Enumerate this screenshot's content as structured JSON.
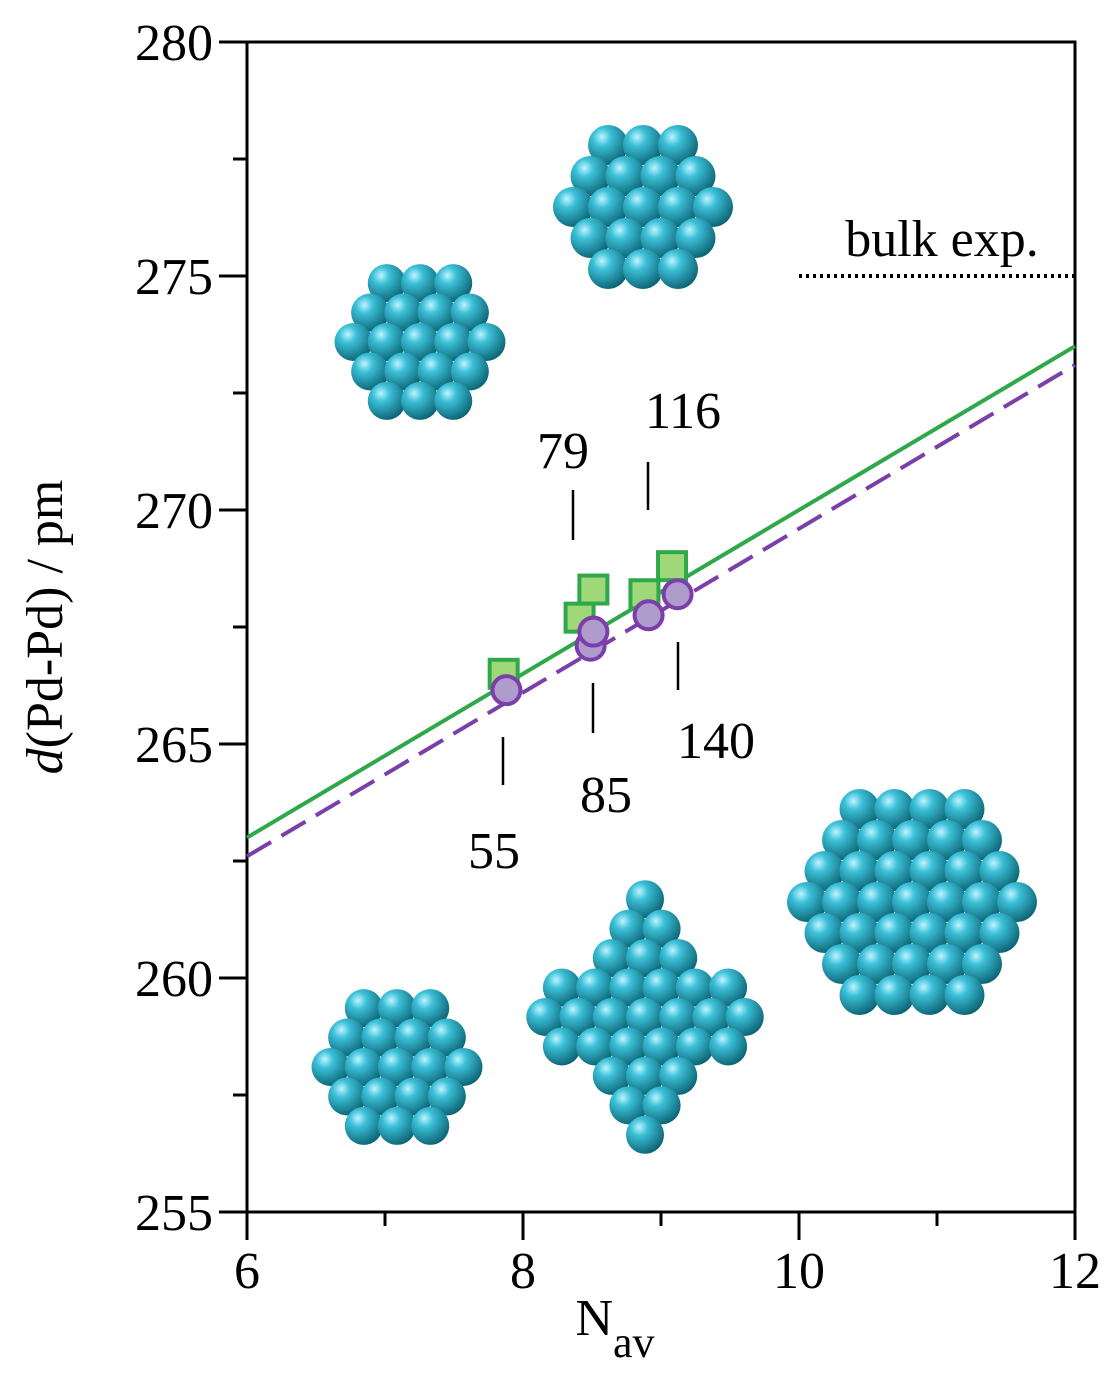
{
  "chart_data": {
    "type": "scatter",
    "x_label": "N",
    "x_label_sub": "av",
    "y_label_italic": "d",
    "y_label": "(Pd-Pd) / pm",
    "xlim": [
      6,
      12
    ],
    "xticks": [
      6,
      8,
      10,
      12
    ],
    "ylim": [
      255,
      280
    ],
    "yticks": [
      255,
      260,
      265,
      270,
      275,
      280
    ],
    "series": [
      {
        "marker": "square",
        "color": "#2ea84a",
        "fill": "#9fd878",
        "x": [
          7.86,
          8.41,
          8.51,
          8.88,
          9.08
        ],
        "values": [
          266.5,
          267.7,
          268.3,
          268.2,
          268.8
        ]
      },
      {
        "marker": "circle",
        "color": "#7a3fa8",
        "fill": "#b09ccc",
        "x": [
          7.88,
          8.49,
          8.51,
          8.91,
          9.12
        ],
        "values": [
          266.15,
          267.1,
          267.4,
          267.75,
          268.2
        ]
      }
    ],
    "fits": [
      {
        "color": "#2ea84a",
        "dashed": false,
        "x": [
          6,
          12
        ],
        "values": [
          263.0,
          273.5
        ]
      },
      {
        "color": "#7a3fa8",
        "dashed": true,
        "x": [
          6,
          12
        ],
        "values": [
          262.6,
          273.1
        ]
      }
    ],
    "reference": {
      "label": "bulk exp.",
      "value": 275,
      "x": [
        10,
        12
      ]
    },
    "annotations": [
      "55",
      "79",
      "85",
      "116",
      "140"
    ]
  }
}
